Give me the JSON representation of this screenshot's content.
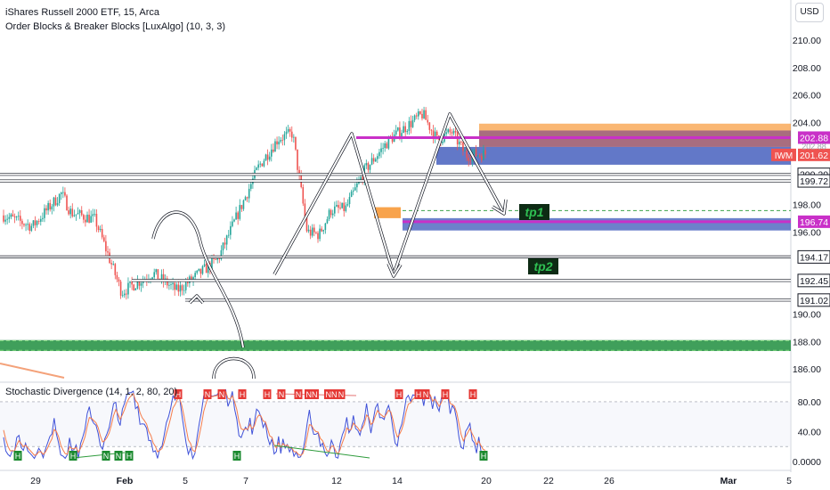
{
  "header": {
    "symbol_line": "iShares Russell 2000 ETF, 15, Arca",
    "indicator_line": "Order Blocks & Breaker Blocks [LuxAlgo] (10, 3, 3)",
    "oscillator_line": "Stochastic Divergence (14, 1, 2, 80, 20)",
    "currency_button": "USD"
  },
  "colors": {
    "up": "#26a69a",
    "down": "#ef5350",
    "magenta": "#c930c8",
    "blue_zone": "#2d4bb5",
    "green_zone": "#1e8e3e",
    "orange": "#f57c00",
    "annotation": "#ffffff"
  },
  "chart_data": [
    {
      "type": "candlestick",
      "symbol": "IWM",
      "ylim": [
        185,
        212
      ],
      "y_ticks": [
        "210.00",
        "208.00",
        "206.00",
        "204.00",
        "198.00",
        "196.00",
        "190.00",
        "188.00",
        "186.00"
      ],
      "x_ticks": [
        "29",
        "Feb",
        "5",
        "7",
        "12",
        "14",
        "20",
        "22",
        "26",
        "Mar",
        "5"
      ],
      "price_path": [
        [
          0,
          197.2
        ],
        [
          0.06,
          196.4
        ],
        [
          0.12,
          198.8
        ],
        [
          0.14,
          197.4
        ],
        [
          0.19,
          196.9
        ],
        [
          0.245,
          191.6
        ],
        [
          0.31,
          193.0
        ],
        [
          0.36,
          191.7
        ],
        [
          0.445,
          194.0
        ],
        [
          0.53,
          200.8
        ],
        [
          0.57,
          202.8
        ],
        [
          0.6,
          203.2
        ],
        [
          0.63,
          196.0
        ],
        [
          0.655,
          195.8
        ],
        [
          0.68,
          197.6
        ],
        [
          0.71,
          197.7
        ],
        [
          0.75,
          200.5
        ],
        [
          0.8,
          202.7
        ],
        [
          0.84,
          203.8
        ],
        [
          0.87,
          204.6
        ],
        [
          0.9,
          202.7
        ],
        [
          0.93,
          203.3
        ],
        [
          0.96,
          201.6
        ],
        [
          1,
          201.7
        ]
      ],
      "price_labels": [
        {
          "value": "202.88",
          "color": "#c930c8"
        },
        {
          "value": "201.62",
          "color": "#ef5350",
          "tag": "IWM"
        },
        {
          "value": "200.20",
          "color": "#ffffff"
        },
        {
          "value": "199.72",
          "color": "#ffffff"
        },
        {
          "value": "196.74",
          "color": "#c930c8"
        },
        {
          "value": "194.17",
          "color": "#ffffff"
        },
        {
          "value": "192.45",
          "color": "#ffffff"
        },
        {
          "value": "191.02",
          "color": "#ffffff"
        }
      ],
      "hidden_label": "202.88",
      "annotations": [
        "tp1",
        "tp2"
      ]
    },
    {
      "type": "line",
      "name": "Stochastic Divergence",
      "ylim": [
        0,
        100
      ],
      "y_ticks": [
        "80.00",
        "40.00",
        "0.0000"
      ],
      "upper_band": 80,
      "lower_band": 20,
      "markers_top": [
        "H",
        "N",
        "N",
        "H",
        "H",
        "N",
        "N",
        "NN",
        "NN",
        "N",
        "H",
        "H",
        "N",
        "H",
        "H"
      ],
      "markers_bottom": [
        "H",
        "H",
        "N",
        "N",
        "H",
        "H",
        "H"
      ]
    }
  ]
}
